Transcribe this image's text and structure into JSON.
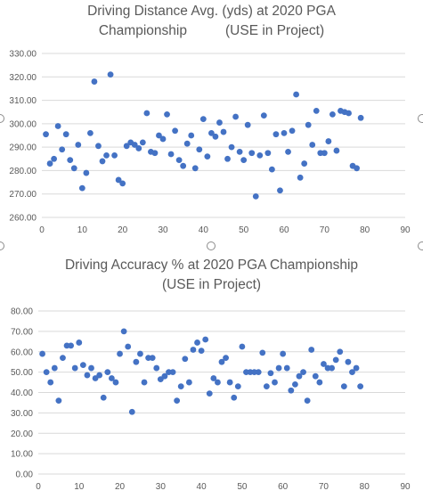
{
  "chart_data": [
    {
      "type": "scatter",
      "title": [
        "Driving Distance Avg. (yds) at 2020 PGA",
        "Championship          (USE in Project)"
      ],
      "xlim": [
        0,
        90
      ],
      "xticks": [
        0,
        10,
        20,
        30,
        40,
        50,
        60,
        70,
        80,
        90
      ],
      "ylim": [
        260,
        330
      ],
      "yticks": [
        260,
        270,
        280,
        290,
        300,
        310,
        320,
        330
      ],
      "ytick_decimals": 2,
      "grid": true,
      "marker_color": "#4472c4",
      "x": [
        1,
        2,
        3,
        4,
        5,
        6,
        7,
        8,
        9,
        10,
        11,
        12,
        13,
        14,
        15,
        16,
        17,
        18,
        19,
        20,
        21,
        22,
        23,
        24,
        25,
        26,
        27,
        28,
        29,
        30,
        31,
        32,
        33,
        34,
        35,
        36,
        37,
        38,
        39,
        40,
        41,
        42,
        43,
        44,
        45,
        46,
        47,
        48,
        49,
        50,
        51,
        52,
        53,
        54,
        55,
        56,
        57,
        58,
        59,
        60,
        61,
        62,
        63,
        64,
        65,
        66,
        67,
        68,
        69,
        70,
        71,
        72,
        73,
        74,
        75,
        76,
        77,
        78,
        79
      ],
      "y": [
        295.5,
        283.0,
        285.0,
        299.0,
        289.0,
        295.5,
        284.5,
        281.0,
        291.0,
        272.5,
        279.0,
        296.0,
        318.0,
        290.5,
        284.0,
        286.5,
        321.0,
        286.5,
        276.0,
        274.5,
        290.5,
        292.0,
        291.0,
        289.5,
        292.0,
        304.5,
        288.0,
        287.5,
        295.0,
        293.5,
        304.0,
        287.0,
        297.0,
        284.5,
        282.0,
        291.5,
        295.0,
        281.0,
        289.0,
        302.0,
        286.0,
        296.0,
        294.5,
        300.5,
        296.5,
        285.0,
        290.0,
        303.0,
        288.0,
        284.5,
        299.5,
        287.5,
        269.0,
        286.5,
        303.5,
        287.5,
        280.5,
        295.5,
        271.5,
        296.0,
        288.0,
        297.0,
        312.5,
        277.0,
        283.0,
        299.5,
        291.0,
        305.5,
        287.5,
        287.5,
        292.5,
        304.0,
        288.5,
        305.5,
        305.0,
        304.5,
        282.0,
        281.0,
        302.5
      ]
    },
    {
      "type": "scatter",
      "title": [
        "Driving Accuracy % at 2020 PGA Championship",
        "(USE in Project)"
      ],
      "xlim": [
        0,
        90
      ],
      "xticks": [
        0,
        10,
        20,
        30,
        40,
        50,
        60,
        70,
        80,
        90
      ],
      "ylim": [
        0,
        80
      ],
      "yticks": [
        0,
        10,
        20,
        30,
        40,
        50,
        60,
        70,
        80
      ],
      "ytick_decimals": 2,
      "grid": true,
      "marker_color": "#4472c4",
      "x": [
        1,
        2,
        3,
        4,
        5,
        6,
        7,
        8,
        9,
        10,
        11,
        12,
        13,
        14,
        15,
        16,
        17,
        18,
        19,
        20,
        21,
        22,
        23,
        24,
        25,
        26,
        27,
        28,
        29,
        30,
        31,
        32,
        33,
        34,
        35,
        36,
        37,
        38,
        39,
        40,
        41,
        42,
        43,
        44,
        45,
        46,
        47,
        48,
        49,
        50,
        51,
        52,
        53,
        54,
        55,
        56,
        57,
        58,
        59,
        60,
        61,
        62,
        63,
        64,
        65,
        66,
        67,
        68,
        69,
        70,
        71,
        72,
        73,
        74,
        75,
        76,
        77,
        78,
        79
      ],
      "y": [
        59.0,
        50.0,
        45.0,
        52.0,
        36.0,
        57.0,
        63.0,
        63.0,
        52.0,
        64.5,
        53.5,
        48.5,
        52.0,
        47.0,
        48.5,
        37.5,
        50.0,
        47.0,
        45.0,
        59.0,
        70.0,
        62.5,
        30.5,
        55.0,
        59.0,
        45.0,
        57.0,
        57.0,
        52.0,
        46.5,
        48.0,
        50.0,
        50.0,
        36.0,
        43.0,
        56.5,
        45.0,
        61.0,
        64.5,
        60.5,
        66.0,
        39.5,
        47.0,
        45.0,
        55.0,
        57.0,
        45.0,
        37.5,
        43.0,
        62.5,
        50.0,
        50.0,
        50.0,
        50.0,
        59.5,
        43.0,
        49.5,
        45.0,
        52.0,
        59.0,
        52.0,
        41.0,
        44.0,
        48.0,
        50.0,
        36.0,
        61.0,
        48.0,
        45.0,
        54.0,
        52.0,
        52.0,
        56.0,
        60.0,
        43.0,
        55.0,
        50.0,
        52.0,
        43.0
      ]
    }
  ]
}
